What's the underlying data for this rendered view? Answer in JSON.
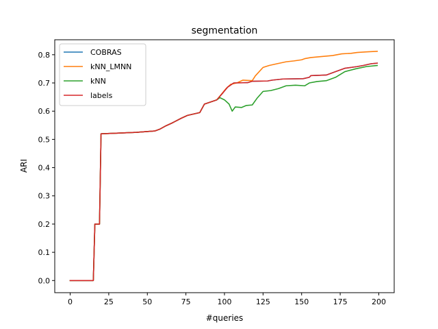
{
  "chart_data": {
    "type": "line",
    "title": "segmentation",
    "xlabel": "#queries",
    "ylabel": "ARI",
    "xlim": [
      -10,
      210
    ],
    "ylim": [
      -0.043,
      0.853
    ],
    "xticks": [
      0,
      25,
      50,
      75,
      100,
      125,
      150,
      175,
      200
    ],
    "yticks": [
      0.0,
      0.1,
      0.2,
      0.3,
      0.4,
      0.5,
      0.6,
      0.7,
      0.8
    ],
    "ytick_labels": [
      "0.0",
      "0.1",
      "0.2",
      "0.3",
      "0.4",
      "0.5",
      "0.6",
      "0.7",
      "0.8"
    ],
    "grid": false,
    "legend_position": "upper-left",
    "series": [
      {
        "name": "COBRAS",
        "color": "#1f77b4",
        "points": [
          [
            0,
            0
          ],
          [
            15,
            0
          ],
          [
            16,
            0.2
          ],
          [
            19,
            0.2
          ],
          [
            20,
            0.52
          ],
          [
            30,
            0.522
          ],
          [
            43,
            0.525
          ],
          [
            55,
            0.53
          ],
          [
            58,
            0.536
          ],
          [
            62,
            0.548
          ],
          [
            66,
            0.558
          ],
          [
            72,
            0.575
          ],
          [
            76,
            0.585
          ],
          [
            84,
            0.595
          ],
          [
            87,
            0.625
          ],
          [
            95,
            0.64
          ],
          [
            99,
            0.665
          ],
          [
            102,
            0.685
          ],
          [
            106,
            0.7
          ],
          [
            115,
            0.701
          ],
          [
            118,
            0.706
          ],
          [
            128,
            0.707
          ],
          [
            131,
            0.71
          ],
          [
            138,
            0.714
          ],
          [
            151,
            0.715
          ],
          [
            155,
            0.72
          ],
          [
            156,
            0.726
          ],
          [
            166,
            0.728
          ],
          [
            172,
            0.74
          ],
          [
            178,
            0.752
          ],
          [
            186,
            0.758
          ],
          [
            190,
            0.762
          ],
          [
            195,
            0.768
          ],
          [
            199,
            0.77
          ]
        ]
      },
      {
        "name": "kNN_LMNN",
        "color": "#ff7f0e",
        "points": [
          [
            0,
            0
          ],
          [
            15,
            0
          ],
          [
            16,
            0.2
          ],
          [
            19,
            0.2
          ],
          [
            20,
            0.52
          ],
          [
            30,
            0.522
          ],
          [
            43,
            0.525
          ],
          [
            55,
            0.53
          ],
          [
            58,
            0.536
          ],
          [
            62,
            0.548
          ],
          [
            66,
            0.558
          ],
          [
            72,
            0.575
          ],
          [
            76,
            0.585
          ],
          [
            84,
            0.595
          ],
          [
            87,
            0.625
          ],
          [
            95,
            0.64
          ],
          [
            98,
            0.66
          ],
          [
            101,
            0.68
          ],
          [
            104,
            0.695
          ],
          [
            108,
            0.7
          ],
          [
            112,
            0.71
          ],
          [
            118,
            0.708
          ],
          [
            120,
            0.725
          ],
          [
            125,
            0.755
          ],
          [
            129,
            0.762
          ],
          [
            134,
            0.768
          ],
          [
            140,
            0.775
          ],
          [
            145,
            0.778
          ],
          [
            150,
            0.782
          ],
          [
            152,
            0.786
          ],
          [
            156,
            0.79
          ],
          [
            162,
            0.793
          ],
          [
            170,
            0.797
          ],
          [
            176,
            0.803
          ],
          [
            182,
            0.805
          ],
          [
            186,
            0.808
          ],
          [
            192,
            0.81
          ],
          [
            199,
            0.812
          ]
        ]
      },
      {
        "name": "kNN",
        "color": "#2ca02c",
        "points": [
          [
            0,
            0
          ],
          [
            15,
            0
          ],
          [
            16,
            0.2
          ],
          [
            19,
            0.2
          ],
          [
            20,
            0.52
          ],
          [
            30,
            0.522
          ],
          [
            43,
            0.525
          ],
          [
            55,
            0.53
          ],
          [
            58,
            0.536
          ],
          [
            62,
            0.548
          ],
          [
            66,
            0.558
          ],
          [
            72,
            0.575
          ],
          [
            76,
            0.585
          ],
          [
            84,
            0.595
          ],
          [
            87,
            0.625
          ],
          [
            95,
            0.64
          ],
          [
            97,
            0.648
          ],
          [
            100,
            0.64
          ],
          [
            103,
            0.625
          ],
          [
            105,
            0.6
          ],
          [
            107,
            0.615
          ],
          [
            111,
            0.613
          ],
          [
            114,
            0.62
          ],
          [
            118,
            0.622
          ],
          [
            121,
            0.645
          ],
          [
            125,
            0.67
          ],
          [
            130,
            0.673
          ],
          [
            135,
            0.68
          ],
          [
            140,
            0.69
          ],
          [
            146,
            0.692
          ],
          [
            152,
            0.69
          ],
          [
            155,
            0.7
          ],
          [
            160,
            0.705
          ],
          [
            166,
            0.708
          ],
          [
            172,
            0.72
          ],
          [
            178,
            0.74
          ],
          [
            185,
            0.75
          ],
          [
            192,
            0.758
          ],
          [
            199,
            0.762
          ]
        ]
      },
      {
        "name": "labels",
        "color": "#d62728",
        "points": [
          [
            0,
            0
          ],
          [
            15,
            0
          ],
          [
            16,
            0.2
          ],
          [
            19,
            0.2
          ],
          [
            20,
            0.52
          ],
          [
            30,
            0.522
          ],
          [
            43,
            0.525
          ],
          [
            55,
            0.53
          ],
          [
            58,
            0.536
          ],
          [
            62,
            0.548
          ],
          [
            66,
            0.558
          ],
          [
            72,
            0.575
          ],
          [
            76,
            0.585
          ],
          [
            84,
            0.595
          ],
          [
            87,
            0.625
          ],
          [
            95,
            0.64
          ],
          [
            99,
            0.665
          ],
          [
            102,
            0.685
          ],
          [
            106,
            0.7
          ],
          [
            115,
            0.701
          ],
          [
            118,
            0.706
          ],
          [
            128,
            0.707
          ],
          [
            131,
            0.71
          ],
          [
            138,
            0.714
          ],
          [
            151,
            0.715
          ],
          [
            155,
            0.72
          ],
          [
            156,
            0.726
          ],
          [
            166,
            0.728
          ],
          [
            172,
            0.74
          ],
          [
            178,
            0.752
          ],
          [
            186,
            0.758
          ],
          [
            190,
            0.762
          ],
          [
            195,
            0.768
          ],
          [
            199,
            0.77
          ]
        ]
      }
    ]
  }
}
